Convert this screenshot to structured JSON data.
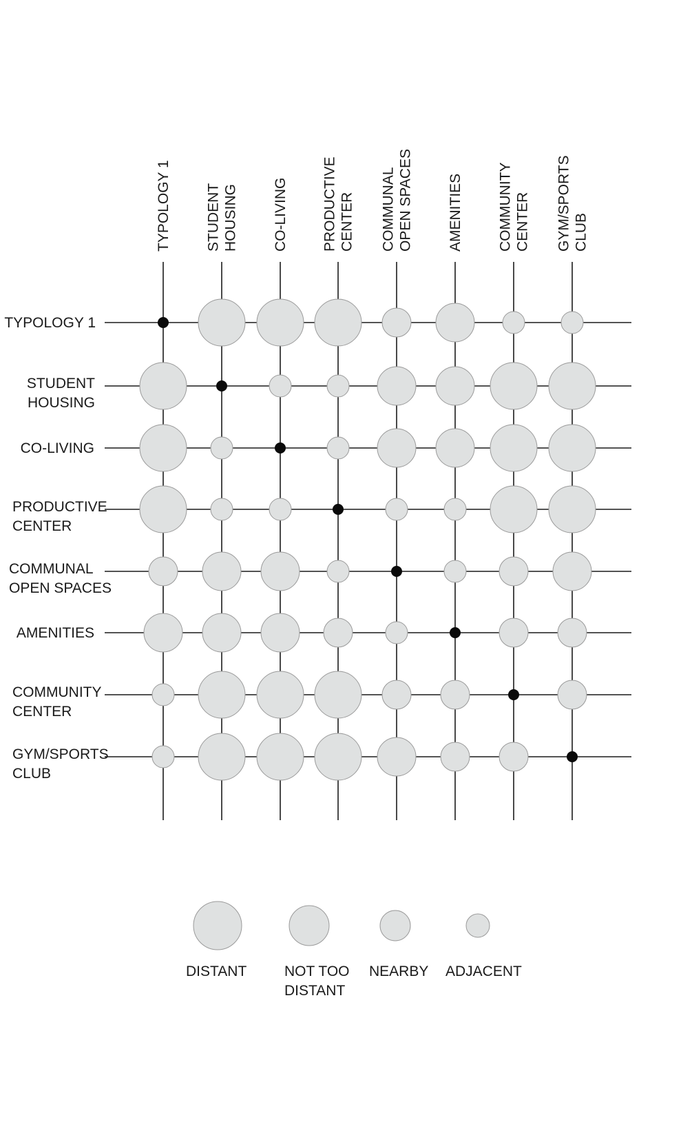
{
  "chart_data": {
    "type": "bubble-matrix",
    "columns": [
      [
        "TYPOLOGY 1"
      ],
      [
        "STUDENT",
        "HOUSING"
      ],
      [
        "CO-LIVING"
      ],
      [
        "PRODUCTIVE",
        "CENTER"
      ],
      [
        "COMMUNAL",
        "OPEN SPACES"
      ],
      [
        "AMENITIES"
      ],
      [
        "COMMUNITY",
        "CENTER"
      ],
      [
        "GYM/SPORTS",
        "CLUB"
      ]
    ],
    "rows": [
      [
        "TYPOLOGY 1"
      ],
      [
        "STUDENT",
        "HOUSING"
      ],
      [
        "CO-LIVING"
      ],
      [
        "PRODUCTIVE",
        "CENTER"
      ],
      [
        "COMMUNAL",
        "OPEN SPACES"
      ],
      [
        "AMENITIES"
      ],
      [
        "COMMUNITY",
        "CENTER"
      ],
      [
        "GYM/SPORTS",
        "CLUB"
      ]
    ],
    "scale": [
      "SELF",
      "ADJACENT",
      "NEARBY",
      "NOT TOO DISTANT",
      "DISTANT"
    ],
    "matrix": [
      [
        "SELF",
        "DISTANT",
        "DISTANT",
        "DISTANT",
        "NEARBY",
        "NOT TOO DISTANT",
        "ADJACENT",
        "ADJACENT"
      ],
      [
        "DISTANT",
        "SELF",
        "ADJACENT",
        "ADJACENT",
        "NOT TOO DISTANT",
        "NOT TOO DISTANT",
        "DISTANT",
        "DISTANT"
      ],
      [
        "DISTANT",
        "ADJACENT",
        "SELF",
        "ADJACENT",
        "NOT TOO DISTANT",
        "NOT TOO DISTANT",
        "DISTANT",
        "DISTANT"
      ],
      [
        "DISTANT",
        "ADJACENT",
        "ADJACENT",
        "SELF",
        "ADJACENT",
        "ADJACENT",
        "DISTANT",
        "DISTANT"
      ],
      [
        "NEARBY",
        "NOT TOO DISTANT",
        "NOT TOO DISTANT",
        "ADJACENT",
        "SELF",
        "ADJACENT",
        "NEARBY",
        "NOT TOO DISTANT"
      ],
      [
        "NOT TOO DISTANT",
        "NOT TOO DISTANT",
        "NOT TOO DISTANT",
        "NEARBY",
        "ADJACENT",
        "SELF",
        "NEARBY",
        "NEARBY"
      ],
      [
        "ADJACENT",
        "DISTANT",
        "DISTANT",
        "DISTANT",
        "NEARBY",
        "NEARBY",
        "SELF",
        "NEARBY"
      ],
      [
        "ADJACENT",
        "DISTANT",
        "DISTANT",
        "DISTANT",
        "NOT TOO DISTANT",
        "NEARBY",
        "NEARBY",
        "SELF"
      ]
    ],
    "legend": [
      {
        "key": "DISTANT",
        "label": [
          "DISTANT"
        ]
      },
      {
        "key": "NOT TOO DISTANT",
        "label": [
          "NOT TOO",
          "DISTANT"
        ]
      },
      {
        "key": "NEARBY",
        "label": [
          "NEARBY"
        ]
      },
      {
        "key": "ADJACENT",
        "label": [
          "ADJACENT"
        ]
      }
    ],
    "colors": {
      "bubble_fill": "#dfe1e1",
      "bubble_stroke": "#9a9a9a",
      "line": "#1a1a1a",
      "self_dot": "#0a0a0a"
    }
  }
}
